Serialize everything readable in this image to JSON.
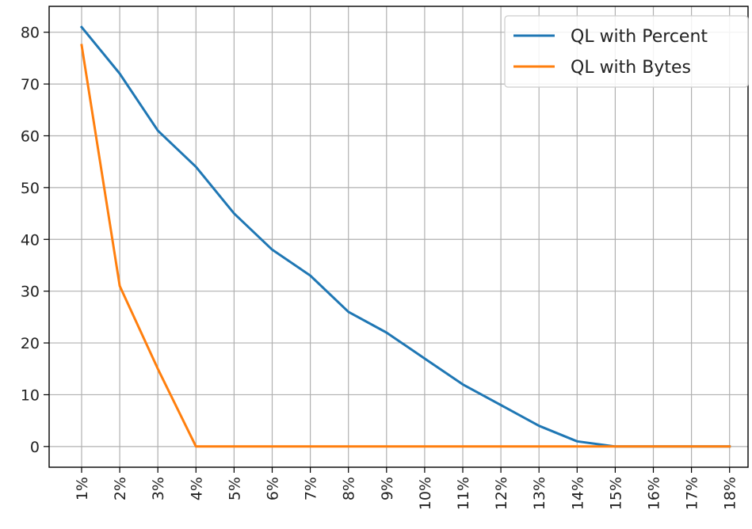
{
  "chart_data": {
    "type": "line",
    "title": "",
    "xlabel": "",
    "ylabel": "",
    "categories": [
      "1%",
      "2%",
      "3%",
      "4%",
      "5%",
      "6%",
      "7%",
      "8%",
      "9%",
      "10%",
      "11%",
      "12%",
      "13%",
      "14%",
      "15%",
      "16%",
      "17%",
      "18%"
    ],
    "series": [
      {
        "name": "QL with Percent",
        "color": "#1f77b4",
        "values": [
          81,
          72,
          61,
          54,
          45,
          38,
          33,
          26,
          22,
          17,
          12,
          8,
          4,
          1,
          0,
          0,
          0,
          0
        ]
      },
      {
        "name": "QL with Bytes",
        "color": "#ff7f0e",
        "values": [
          77.5,
          31,
          15,
          0,
          0,
          0,
          0,
          0,
          0,
          0,
          0,
          0,
          0,
          0,
          0,
          0,
          0,
          0
        ]
      }
    ],
    "yticks": [
      0,
      10,
      20,
      30,
      40,
      50,
      60,
      70,
      80
    ],
    "ylim": [
      -4,
      85
    ],
    "grid": true,
    "legend_position": "top-right"
  }
}
